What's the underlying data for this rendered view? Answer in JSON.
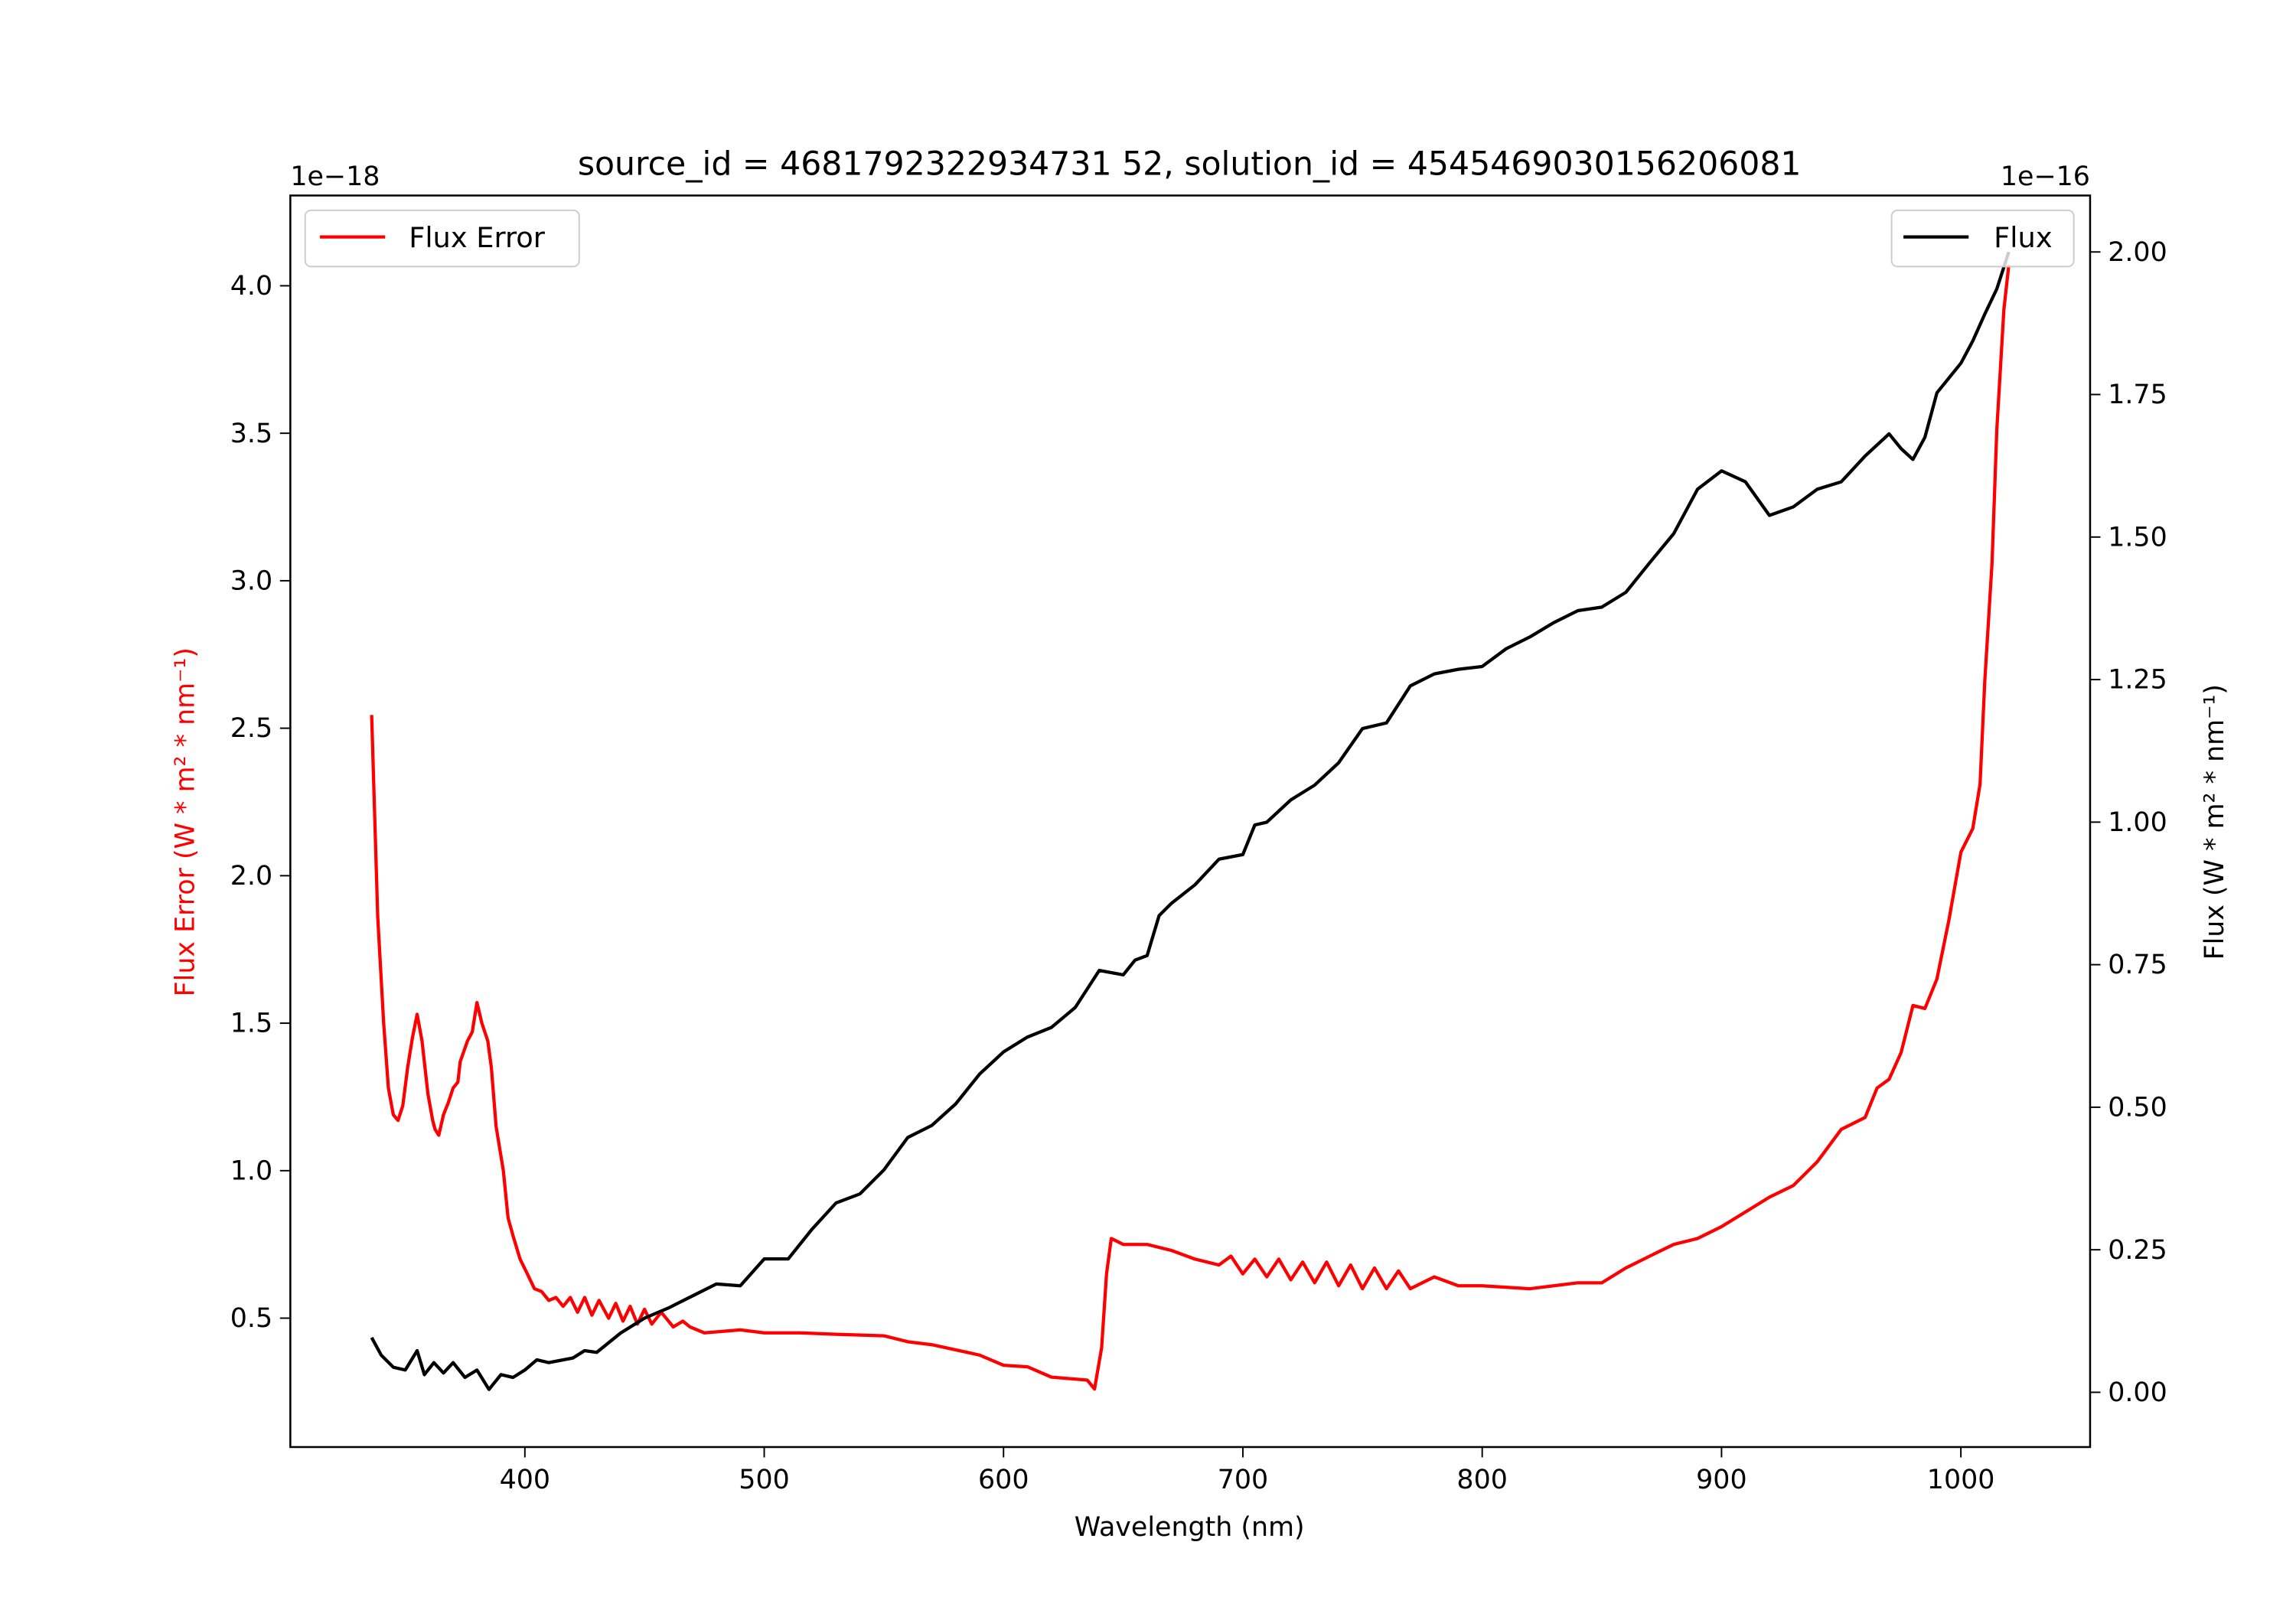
{
  "chart_data": {
    "type": "line",
    "title": "source_id = 4681792322934731 52, solution_id = 4545469030156206081",
    "xlabel": "Wavelength (nm)",
    "xlim": [
      302,
      1054
    ],
    "xticks": [
      400,
      500,
      600,
      700,
      800,
      900,
      1000
    ],
    "grid": false,
    "left_axis": {
      "ylabel": "Flux Error (W * m² * nm⁻¹)",
      "offset_label": "1e−18",
      "ylim": [
        0.063,
        4.306
      ],
      "yticks": [
        0.5,
        1.0,
        1.5,
        2.0,
        2.5,
        3.0,
        3.5,
        4.0
      ],
      "color": "#ff0000"
    },
    "right_axis": {
      "ylabel": "Flux (W * m² * nm⁻¹)",
      "offset_label": "1e−16",
      "ylim": [
        -0.096,
        2.099
      ],
      "yticks": [
        0.0,
        0.25,
        0.5,
        0.75,
        1.0,
        1.25,
        1.5,
        1.75,
        2.0
      ],
      "color": "#000000"
    },
    "series": [
      {
        "name": "Flux Error",
        "axis": "left",
        "color": "#ff0000",
        "legend": "upper-left",
        "x": [
          336,
          338.5,
          341,
          343,
          345,
          347,
          349,
          351,
          353,
          355,
          357,
          359.5,
          361.5,
          362.5,
          364,
          366,
          368,
          370,
          372,
          373,
          376,
          378,
          380,
          382,
          384.5,
          386,
          388,
          391,
          393,
          395,
          398,
          401,
          404,
          407,
          410,
          413,
          416,
          419,
          422,
          425,
          428,
          431,
          435,
          438,
          441,
          444,
          447,
          450,
          453,
          457,
          462,
          466,
          469,
          475,
          490,
          500,
          515,
          530,
          550,
          560,
          570,
          590,
          600,
          610,
          620,
          635,
          638,
          641,
          643,
          645,
          650,
          660,
          670,
          680,
          690,
          695,
          700,
          705,
          710,
          715,
          720,
          725,
          730,
          735,
          740,
          745,
          750,
          755,
          760,
          765,
          770,
          780,
          790,
          800,
          820,
          840,
          850,
          860,
          870,
          880,
          890,
          900,
          910,
          920,
          930,
          940,
          950,
          960,
          965,
          970,
          975,
          980,
          985,
          990,
          995,
          1000,
          1005,
          1008,
          1010,
          1013,
          1015,
          1018,
          1020
        ],
        "y": [
          2.545,
          1.86,
          1.5,
          1.28,
          1.19,
          1.17,
          1.22,
          1.35,
          1.45,
          1.53,
          1.44,
          1.26,
          1.17,
          1.14,
          1.12,
          1.19,
          1.23,
          1.28,
          1.3,
          1.37,
          1.44,
          1.47,
          1.57,
          1.5,
          1.44,
          1.35,
          1.15,
          1.0,
          0.84,
          0.78,
          0.7,
          0.65,
          0.6,
          0.59,
          0.56,
          0.57,
          0.54,
          0.57,
          0.52,
          0.57,
          0.51,
          0.56,
          0.5,
          0.55,
          0.49,
          0.54,
          0.48,
          0.53,
          0.48,
          0.52,
          0.47,
          0.49,
          0.47,
          0.45,
          0.46,
          0.45,
          0.45,
          0.445,
          0.44,
          0.42,
          0.41,
          0.375,
          0.34,
          0.335,
          0.3,
          0.29,
          0.26,
          0.4,
          0.65,
          0.77,
          0.75,
          0.75,
          0.73,
          0.7,
          0.68,
          0.71,
          0.65,
          0.7,
          0.64,
          0.7,
          0.63,
          0.69,
          0.62,
          0.69,
          0.61,
          0.68,
          0.6,
          0.67,
          0.6,
          0.66,
          0.6,
          0.64,
          0.61,
          0.61,
          0.6,
          0.62,
          0.62,
          0.67,
          0.71,
          0.75,
          0.77,
          0.81,
          0.86,
          0.91,
          0.95,
          1.03,
          1.14,
          1.18,
          1.28,
          1.31,
          1.4,
          1.56,
          1.55,
          1.65,
          1.85,
          2.08,
          2.16,
          2.31,
          2.66,
          3.06,
          3.51,
          3.92,
          4.07
        ]
      },
      {
        "name": "Flux",
        "axis": "right",
        "color": "#000000",
        "legend": "upper-right",
        "x": [
          336,
          340,
          345,
          350,
          355,
          358,
          362,
          366,
          370,
          375,
          380,
          385,
          390,
          395,
          400,
          405,
          410,
          420,
          425,
          430,
          440,
          450,
          460,
          470,
          480,
          490,
          500,
          510,
          520,
          530,
          540,
          550,
          560,
          570,
          580,
          590,
          600,
          610,
          620,
          630,
          640,
          650,
          655,
          660,
          665,
          670,
          680,
          690,
          700,
          705,
          710,
          720,
          730,
          740,
          750,
          760,
          770,
          780,
          790,
          800,
          810,
          820,
          830,
          840,
          850,
          860,
          870,
          880,
          890,
          900,
          910,
          920,
          930,
          940,
          950,
          960,
          970,
          975,
          980,
          985,
          990,
          1000,
          1005,
          1010,
          1015,
          1020
        ],
        "y": [
          0.096,
          0.065,
          0.044,
          0.039,
          0.073,
          0.031,
          0.052,
          0.034,
          0.052,
          0.026,
          0.039,
          0.005,
          0.031,
          0.026,
          0.039,
          0.057,
          0.052,
          0.06,
          0.073,
          0.07,
          0.104,
          0.13,
          0.148,
          0.169,
          0.19,
          0.187,
          0.234,
          0.234,
          0.286,
          0.332,
          0.348,
          0.39,
          0.447,
          0.468,
          0.506,
          0.558,
          0.597,
          0.623,
          0.64,
          0.675,
          0.74,
          0.732,
          0.758,
          0.766,
          0.836,
          0.857,
          0.89,
          0.935,
          0.943,
          0.995,
          1.0,
          1.039,
          1.065,
          1.104,
          1.164,
          1.174,
          1.239,
          1.26,
          1.268,
          1.273,
          1.304,
          1.325,
          1.35,
          1.371,
          1.377,
          1.403,
          1.455,
          1.506,
          1.584,
          1.616,
          1.597,
          1.538,
          1.553,
          1.584,
          1.597,
          1.642,
          1.681,
          1.655,
          1.636,
          1.675,
          1.753,
          1.805,
          1.844,
          1.891,
          1.935,
          2.0
        ]
      }
    ]
  }
}
